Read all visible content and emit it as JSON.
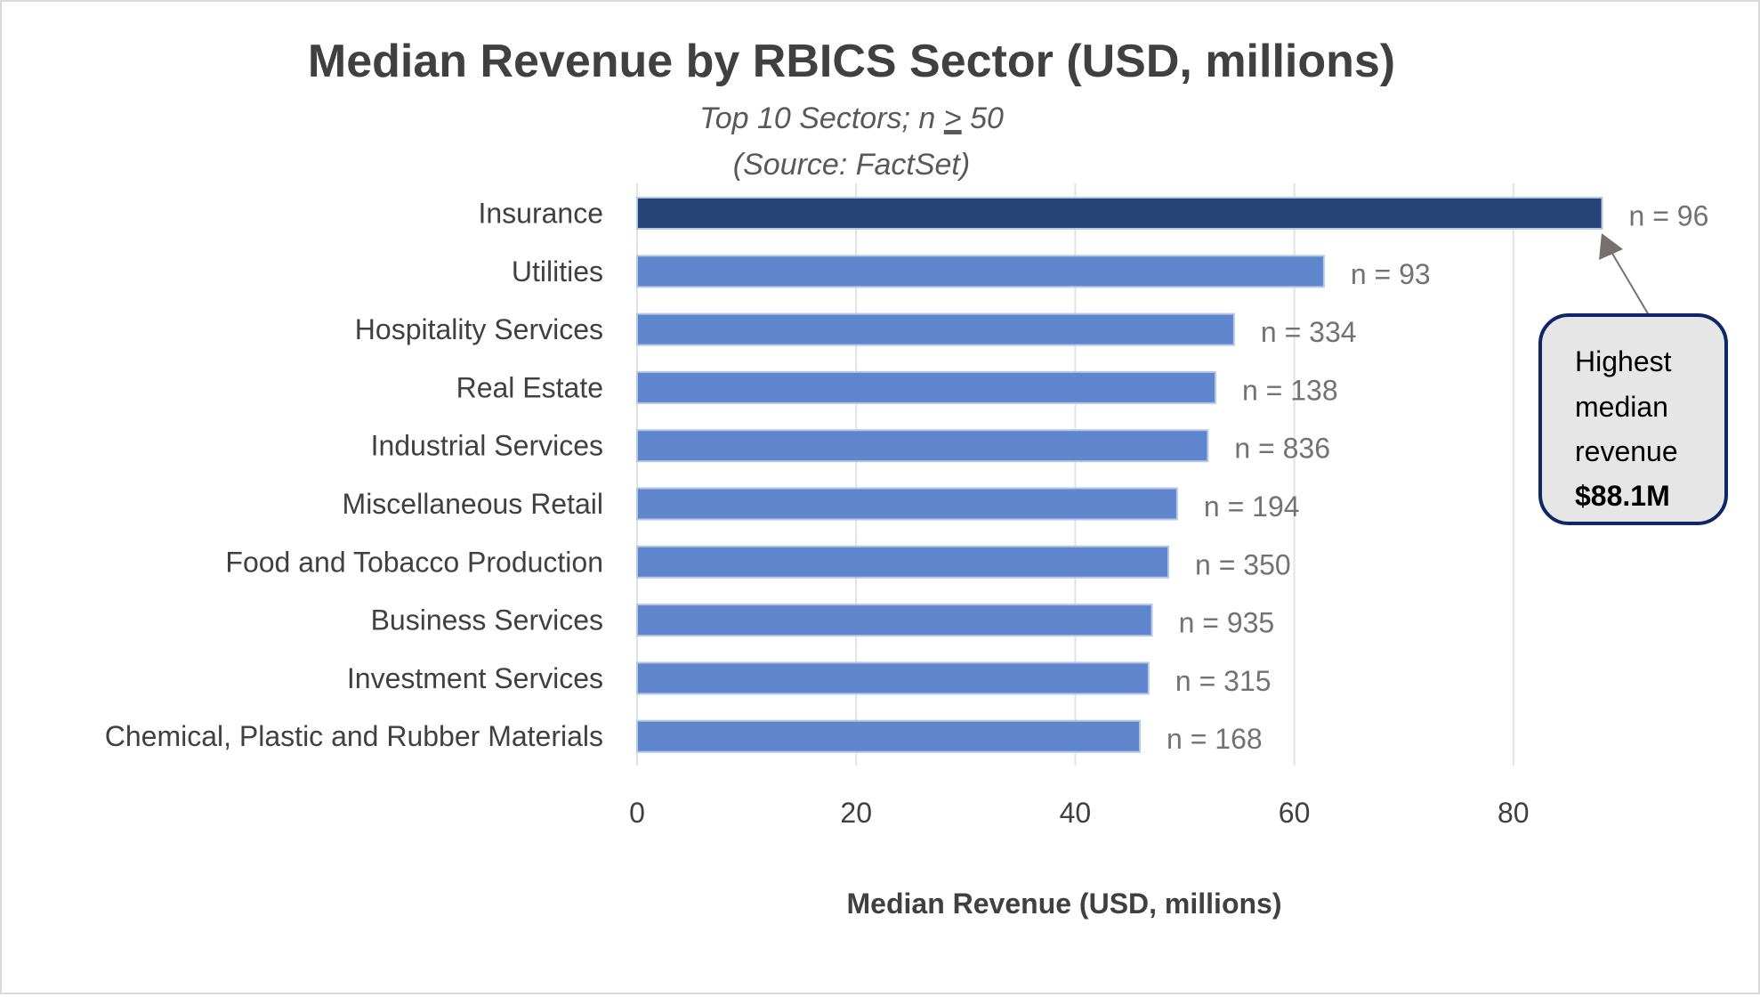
{
  "chart_data": {
    "type": "bar",
    "orientation": "horizontal",
    "title": "Median Revenue by RBICS Sector (USD, millions)",
    "subtitle_line1_prefix": "Top 10 Sectors; n ",
    "subtitle_line1_symbol": ">",
    "subtitle_line1_suffix": " 50",
    "subtitle_line2": "(Source: FactSet)",
    "xlabel": "Median Revenue (USD, millions)",
    "ylabel": "",
    "xlim": [
      0,
      95
    ],
    "xticks": [
      0,
      20,
      40,
      60,
      80
    ],
    "grid": true,
    "legend": "none",
    "categories": [
      "Insurance",
      "Utilities",
      "Hospitality Services",
      "Real Estate",
      "Industrial Services",
      "Miscellaneous Retail",
      "Food and Tobacco Production",
      "Business Services",
      "Investment Services",
      "Chemical, Plastic and Rubber Materials"
    ],
    "values": [
      88.1,
      62.7,
      54.5,
      52.8,
      52.1,
      49.3,
      48.5,
      47.0,
      46.7,
      45.9
    ],
    "n_labels": [
      "n = 96",
      "n = 93",
      "n = 334",
      "n = 138",
      "n = 836",
      "n = 194",
      "n = 350",
      "n = 935",
      "n = 315",
      "n = 168"
    ],
    "highlight_index": 0,
    "colors": {
      "bar": "#5f86cc",
      "bar_border": "#b4c7e7",
      "highlight": "#264478",
      "gridline": "#e3e3e3",
      "callout_fill": "#e7e6e6",
      "callout_border": "#0e2768",
      "arrow": "#767171"
    },
    "annotation": {
      "lines": [
        "Highest",
        "median",
        "revenue"
      ],
      "value": "$88.1M",
      "points_to": "Insurance"
    }
  }
}
